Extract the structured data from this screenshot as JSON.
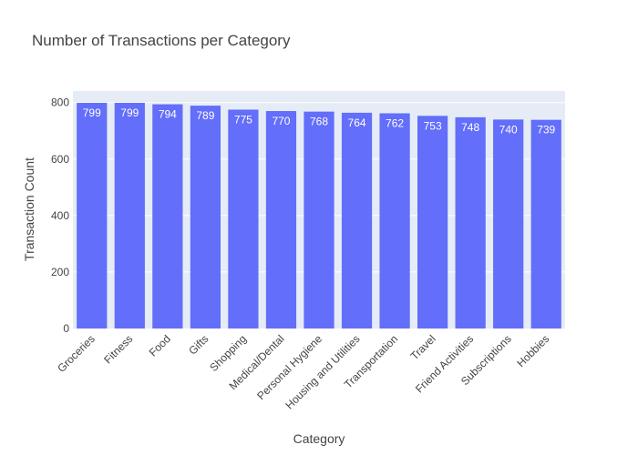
{
  "chart_data": {
    "type": "bar",
    "title": "Number of Transactions per Category",
    "xlabel": "Category",
    "ylabel": "Transaction Count",
    "categories": [
      "Groceries",
      "Fitness",
      "Food",
      "Gifts",
      "Shopping",
      "Medical/Dental",
      "Personal Hygiene",
      "Housing and Utilities",
      "Transportation",
      "Travel",
      "Friend Activities",
      "Subscriptions",
      "Hobbies"
    ],
    "values": [
      799,
      799,
      794,
      789,
      775,
      770,
      768,
      764,
      762,
      753,
      748,
      740,
      739
    ],
    "ylim": [
      0,
      841
    ],
    "yticks": [
      0,
      200,
      400,
      600,
      800
    ],
    "grid": true,
    "colors": {
      "bar": "#636efa",
      "plot_bg": "#e5ecf6",
      "grid": "#ffffff"
    }
  }
}
